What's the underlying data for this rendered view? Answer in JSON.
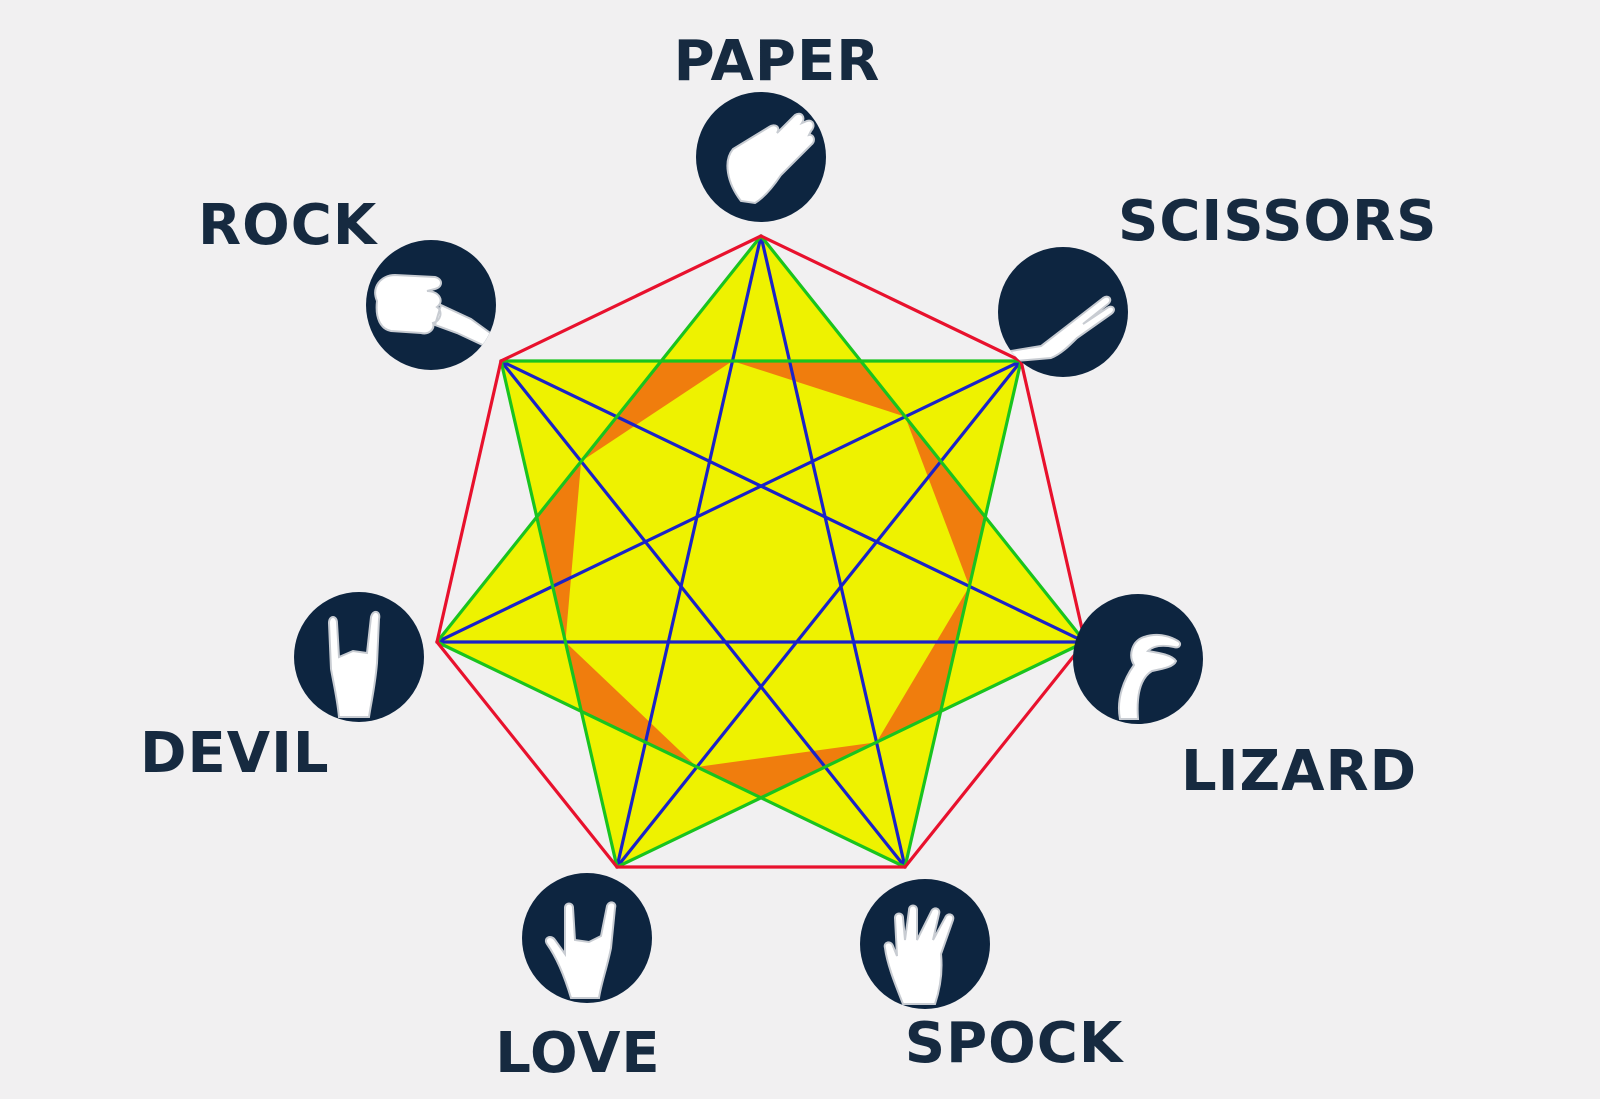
{
  "gestures": [
    {
      "label": "PAPER",
      "icon": "flat-hand-icon"
    },
    {
      "label": "SCISSORS",
      "icon": "v-sign-hand-icon"
    },
    {
      "label": "LIZARD",
      "icon": "pinch-hand-icon"
    },
    {
      "label": "SPOCK",
      "icon": "vulcan-salute-hand-icon"
    },
    {
      "label": "LOVE",
      "icon": "i-love-you-hand-icon"
    },
    {
      "label": "DEVIL",
      "icon": "horns-hand-icon"
    },
    {
      "label": "ROCK",
      "icon": "fist-icon"
    }
  ],
  "colors": {
    "background": "#f1f0f1",
    "heptagon_edges": "#e8112d",
    "heptagram_3": "#1a22c8",
    "heptagram_2": "#19c41e",
    "star_fill": "#eef200",
    "center_triangles": "#f07d0d",
    "icon_disc": "#0d2540",
    "label_text": "#162a40"
  }
}
